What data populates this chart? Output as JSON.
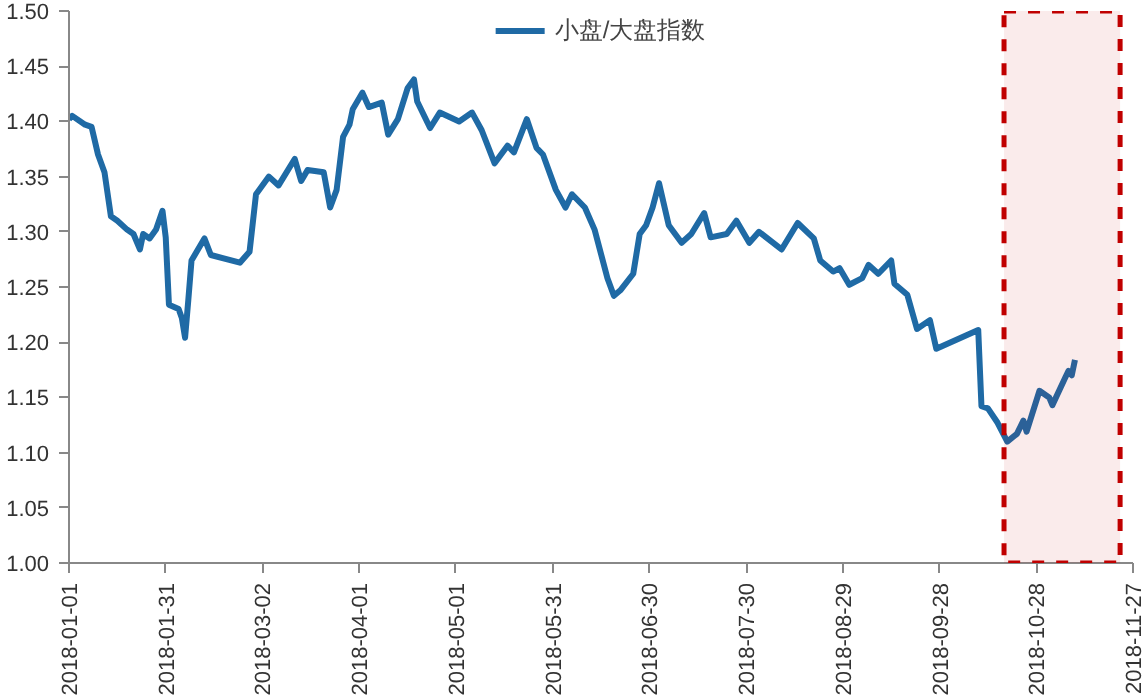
{
  "chart_data": {
    "type": "line",
    "x": [
      "2018-01-01",
      "2018-01-02",
      "2018-01-06",
      "2018-01-08",
      "2018-01-10",
      "2018-01-12",
      "2018-01-14",
      "2018-01-16",
      "2018-01-19",
      "2018-01-21",
      "2018-01-23",
      "2018-01-24",
      "2018-01-26",
      "2018-01-28",
      "2018-01-30",
      "2018-01-31",
      "2018-02-01",
      "2018-02-04",
      "2018-02-05",
      "2018-02-06",
      "2018-02-07",
      "2018-02-08",
      "2018-02-12",
      "2018-02-14",
      "2018-02-23",
      "2018-02-26",
      "2018-02-28",
      "2018-03-04",
      "2018-03-07",
      "2018-03-12",
      "2018-03-14",
      "2018-03-16",
      "2018-03-21",
      "2018-03-23",
      "2018-03-25",
      "2018-03-27",
      "2018-03-29",
      "2018-03-30",
      "2018-04-02",
      "2018-04-04",
      "2018-04-08",
      "2018-04-10",
      "2018-04-13",
      "2018-04-16",
      "2018-04-18",
      "2018-04-19",
      "2018-04-23",
      "2018-04-26",
      "2018-05-02",
      "2018-05-06",
      "2018-05-09",
      "2018-05-13",
      "2018-05-17",
      "2018-05-19",
      "2018-05-23",
      "2018-05-26",
      "2018-05-28",
      "2018-06-01",
      "2018-06-04",
      "2018-06-06",
      "2018-06-10",
      "2018-06-13",
      "2018-06-17",
      "2018-06-19",
      "2018-06-21",
      "2018-06-25",
      "2018-06-27",
      "2018-06-29",
      "2018-07-01",
      "2018-07-03",
      "2018-07-06",
      "2018-07-10",
      "2018-07-13",
      "2018-07-17",
      "2018-07-19",
      "2018-07-24",
      "2018-07-27",
      "2018-07-31",
      "2018-08-03",
      "2018-08-10",
      "2018-08-15",
      "2018-08-20",
      "2018-08-22",
      "2018-08-26",
      "2018-08-28",
      "2018-08-31",
      "2018-09-04",
      "2018-09-06",
      "2018-09-09",
      "2018-09-13",
      "2018-09-14",
      "2018-09-18",
      "2018-09-21",
      "2018-09-25",
      "2018-09-27",
      "2018-10-10",
      "2018-10-11",
      "2018-10-13",
      "2018-10-16",
      "2018-10-19",
      "2018-10-22",
      "2018-10-24",
      "2018-10-25",
      "2018-10-29",
      "2018-11-01",
      "2018-11-02",
      "2018-11-06",
      "2018-11-07",
      "2018-11-08",
      "2018-11-09"
    ],
    "series": [
      {
        "name": "小盘/大盘指数",
        "color": "#1f6aa5",
        "values": [
          1.402,
          1.405,
          1.397,
          1.395,
          1.37,
          1.354,
          1.314,
          1.31,
          1.302,
          1.298,
          1.284,
          1.298,
          1.294,
          1.302,
          1.319,
          1.295,
          1.234,
          1.23,
          1.222,
          1.204,
          1.238,
          1.274,
          1.294,
          1.279,
          1.272,
          1.282,
          1.334,
          1.35,
          1.342,
          1.366,
          1.346,
          1.356,
          1.354,
          1.322,
          1.338,
          1.386,
          1.397,
          1.411,
          1.426,
          1.413,
          1.417,
          1.388,
          1.402,
          1.43,
          1.438,
          1.418,
          1.394,
          1.408,
          1.4,
          1.408,
          1.392,
          1.362,
          1.378,
          1.372,
          1.402,
          1.376,
          1.37,
          1.338,
          1.322,
          1.334,
          1.322,
          1.302,
          1.258,
          1.242,
          1.247,
          1.262,
          1.298,
          1.306,
          1.322,
          1.344,
          1.306,
          1.29,
          1.298,
          1.317,
          1.295,
          1.298,
          1.31,
          1.29,
          1.3,
          1.284,
          1.308,
          1.294,
          1.274,
          1.264,
          1.267,
          1.252,
          1.258,
          1.27,
          1.262,
          1.274,
          1.253,
          1.243,
          1.212,
          1.22,
          1.194,
          1.211,
          1.142,
          1.14,
          1.127,
          1.11,
          1.117,
          1.129,
          1.119,
          1.156,
          1.15,
          1.143,
          1.168,
          1.174,
          1.17,
          1.184
        ]
      }
    ],
    "xlim": [
      "2018-01-01",
      "2018-11-27"
    ],
    "xticks": [
      "2018-01-01",
      "2018-01-31",
      "2018-03-02",
      "2018-04-01",
      "2018-05-01",
      "2018-05-31",
      "2018-06-30",
      "2018-07-30",
      "2018-08-29",
      "2018-09-28",
      "2018-10-28",
      "2018-11-27"
    ],
    "ylim": [
      1.0,
      1.5
    ],
    "yticks": [
      {
        "value": 1.0,
        "label": "1.00"
      },
      {
        "value": 1.05,
        "label": "1.05"
      },
      {
        "value": 1.1,
        "label": "1.10"
      },
      {
        "value": 1.15,
        "label": "1.15"
      },
      {
        "value": 1.2,
        "label": "1.20"
      },
      {
        "value": 1.25,
        "label": "1.25"
      },
      {
        "value": 1.3,
        "label": "1.30"
      },
      {
        "value": 1.35,
        "label": "1.35"
      },
      {
        "value": 1.4,
        "label": "1.40"
      },
      {
        "value": 1.45,
        "label": "1.45"
      },
      {
        "value": 1.5,
        "label": "1.50"
      }
    ],
    "bands": [
      {
        "axis": "x",
        "from": "2018-10-18",
        "to": "2018-11-23",
        "color": "#c00000"
      }
    ],
    "legend": "top",
    "grid": false,
    "line_style": "solid",
    "marker": "none"
  }
}
